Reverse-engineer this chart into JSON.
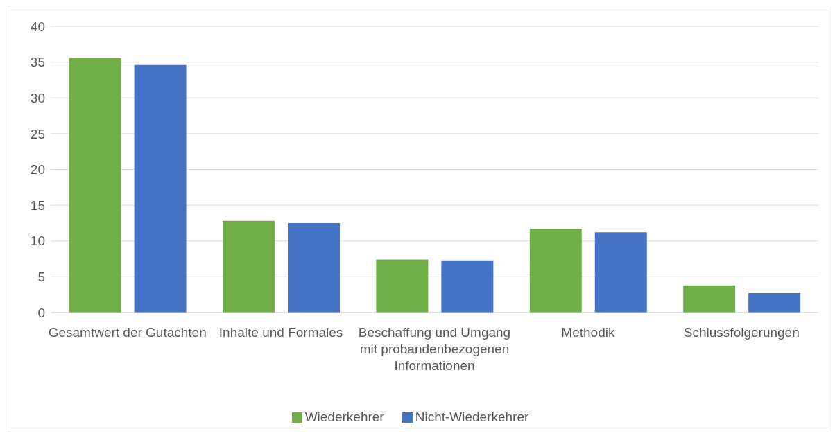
{
  "chart_data": {
    "type": "bar",
    "categories": [
      "Gesamtwert der Gutachten",
      "Inhalte und Formales",
      "Beschaffung und Umgang mit probandenbezogenen Informationen",
      "Methodik",
      "Schlussfolgerungen"
    ],
    "series": [
      {
        "name": "Wiederkehrer",
        "color": "#70ad47",
        "values": [
          35.6,
          12.8,
          7.4,
          11.7,
          3.8
        ]
      },
      {
        "name": "Nicht-Wiederkehrer",
        "color": "#4472c4",
        "values": [
          34.6,
          12.5,
          7.3,
          11.2,
          2.7
        ]
      }
    ],
    "ylim": [
      0,
      40
    ],
    "yticks": [
      0,
      5,
      10,
      15,
      20,
      25,
      30,
      35,
      40
    ],
    "grid": "y",
    "legend": "bottom"
  }
}
